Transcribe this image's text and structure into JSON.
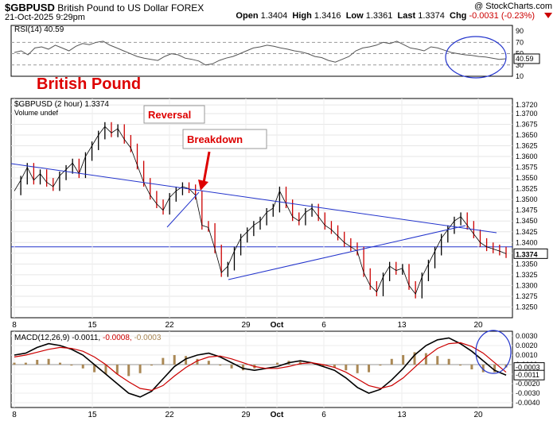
{
  "header": {
    "symbol": "$GBPUSD",
    "name": "British Pound to US Dollar",
    "exchange": "FOREX",
    "date": "21-Oct-2025 9:29pm",
    "open_label": "Open",
    "open": "1.3404",
    "high_label": "High",
    "high": "1.3416",
    "low_label": "Low",
    "low": "1.3361",
    "last_label": "Last",
    "last": "1.3374",
    "chg_label": "Chg",
    "chg": "-0.0031 (-0.23%)",
    "watermark": "@ StockCharts.com"
  },
  "annotations": {
    "big_label": "British Pound",
    "reversal": "Reversal",
    "breakdown": "Breakdown"
  },
  "colors": {
    "accent_red": "#dd0000",
    "trendline": "#2233cc",
    "price": "#000000",
    "down_bar": "#cc0000",
    "rsi": "#555555",
    "macd": "#000000",
    "signal": "#cc0000",
    "hist": "#aa8855"
  },
  "chart_data": [
    {
      "type": "line",
      "panel": "RSI",
      "legend": "RSI(14) 40.59",
      "last_value": "40.59",
      "ylim": [
        10,
        100
      ],
      "ticks": [
        "90",
        "70",
        "50",
        "30",
        "10"
      ],
      "levels": [
        70,
        50,
        30
      ],
      "series": [
        {
          "values": [
            52,
            55,
            48,
            60,
            62,
            58,
            65,
            60,
            55,
            63,
            68,
            66,
            70,
            72,
            65,
            60,
            55,
            50,
            45,
            42,
            40,
            38,
            45,
            50,
            48,
            42,
            40,
            37,
            30,
            32,
            38,
            42,
            45,
            50,
            55,
            60,
            62,
            65,
            63,
            60,
            58,
            55,
            53,
            50,
            45,
            43,
            38,
            35,
            40,
            45,
            55,
            60,
            62,
            65,
            70,
            68,
            72,
            66,
            60,
            58,
            55,
            62,
            60,
            56,
            52,
            50,
            48,
            47,
            45,
            44,
            42,
            40,
            41
          ]
        }
      ]
    },
    {
      "type": "line",
      "panel": "price",
      "legend": "$GBPUSD (2 hour) 1.3374",
      "volume_label": "Volume undef",
      "x_ticks": [
        "8",
        "15",
        "22",
        "29",
        "Oct",
        "6",
        "13",
        "20"
      ],
      "ylim": [
        1.3225,
        1.3735
      ],
      "y_ticks": [
        "1.3720",
        "1.3700",
        "1.3675",
        "1.3650",
        "1.3625",
        "1.3600",
        "1.3575",
        "1.3550",
        "1.3525",
        "1.3500",
        "1.3475",
        "1.3450",
        "1.3425",
        "1.3400",
        "1.3375",
        "1.3350",
        "1.3325",
        "1.3300",
        "1.3275",
        "1.3250"
      ],
      "last_value": "1.3374",
      "hline": 1.339,
      "series": [
        {
          "values": [
            1.352,
            1.3545,
            1.3575,
            1.3545,
            1.356,
            1.354,
            1.353,
            1.3555,
            1.357,
            1.3585,
            1.356,
            1.36,
            1.3625,
            1.365,
            1.367,
            1.3655,
            1.3665,
            1.364,
            1.362,
            1.358,
            1.354,
            1.351,
            1.349,
            1.3475,
            1.3505,
            1.352,
            1.353,
            1.3525,
            1.351,
            1.344,
            1.3435,
            1.3385,
            1.333,
            1.3345,
            1.338,
            1.341,
            1.3425,
            1.344,
            1.345,
            1.347,
            1.348,
            1.352,
            1.349,
            1.346,
            1.345,
            1.347,
            1.348,
            1.346,
            1.344,
            1.343,
            1.3415,
            1.34,
            1.339,
            1.338,
            1.333,
            1.33,
            1.3285,
            1.332,
            1.3345,
            1.3335,
            1.334,
            1.33,
            1.328,
            1.332,
            1.335,
            1.338,
            1.341,
            1.343,
            1.345,
            1.346,
            1.344,
            1.342,
            1.34,
            1.339,
            1.3385,
            1.338,
            1.3374
          ]
        }
      ]
    },
    {
      "type": "line",
      "panel": "MACD",
      "legend_prefix": "MACD(12,26,9)",
      "legend_macd": "-0.0011,",
      "legend_signal": "-0.0008,",
      "legend_hist": "-0.0003",
      "ylim": [
        -0.0045,
        0.0035
      ],
      "y_ticks": [
        "0.0030",
        "0.0020",
        "0.0010",
        "0.0000",
        "-0.0010",
        "-0.0020",
        "-0.0030",
        "-0.0040"
      ],
      "last_values": [
        "-0.0003",
        "-0.0011"
      ],
      "series": [
        {
          "name": "MACD",
          "values": [
            0.001,
            0.0012,
            0.0018,
            0.0022,
            0.002,
            0.0016,
            0.001,
            0.0,
            -0.001,
            -0.002,
            -0.003,
            -0.0034,
            -0.0028,
            -0.0015,
            -0.0002,
            0.0006,
            0.001,
            0.0012,
            0.0008,
            0.0002,
            -0.0004,
            -0.0006,
            -0.0004,
            -0.0002,
            0.0002,
            0.0004,
            0.0002,
            -0.0002,
            -0.0006,
            -0.0014,
            -0.0024,
            -0.003,
            -0.0026,
            -0.0016,
            -0.0004,
            0.001,
            0.002,
            0.0026,
            0.0028,
            0.0022,
            0.0014,
            0.0004,
            -0.0006,
            -0.0011
          ]
        },
        {
          "name": "Signal",
          "values": [
            0.0008,
            0.001,
            0.0013,
            0.0016,
            0.0018,
            0.0017,
            0.0014,
            0.0008,
            0.0,
            -0.001,
            -0.0018,
            -0.0025,
            -0.0027,
            -0.0022,
            -0.0012,
            -0.0003,
            0.0004,
            0.0008,
            0.0009,
            0.0006,
            0.0002,
            -0.0002,
            -0.0004,
            -0.0004,
            -0.0002,
            0.0001,
            0.0002,
            0.0,
            -0.0003,
            -0.0008,
            -0.0015,
            -0.0022,
            -0.0025,
            -0.0022,
            -0.0014,
            -0.0003,
            0.0008,
            0.0017,
            0.0022,
            0.0023,
            0.0019,
            0.0012,
            0.0002,
            -0.0008
          ]
        }
      ]
    }
  ]
}
